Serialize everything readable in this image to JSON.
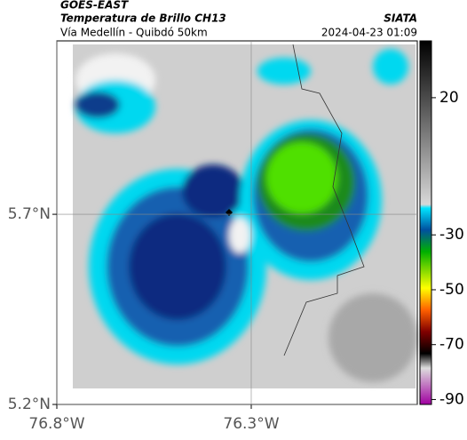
{
  "header": {
    "satellite": "GOES-EAST",
    "product": "Temperatura de Brillo CH13",
    "org": "SIATA",
    "route": "Vía Medellín - Quibdó 50km",
    "datetime": "2024-04-23 01:09"
  },
  "map": {
    "lonlim": [
      -76.8,
      -75.873
    ],
    "latlim": [
      5.2,
      6.156
    ],
    "xticks": [
      {
        "value": -76.8,
        "label": "76.8°W"
      },
      {
        "value": -76.3,
        "label": "76.3°W"
      }
    ],
    "yticks": [
      {
        "value": 5.2,
        "label": "5.2°N"
      },
      {
        "value": 5.7,
        "label": "5.7°N"
      }
    ],
    "grid": true
  },
  "colorbar": {
    "lim": [
      40.7,
      -91.8
    ],
    "ticks": [
      20,
      -30,
      -50,
      -70,
      -90
    ]
  }
}
